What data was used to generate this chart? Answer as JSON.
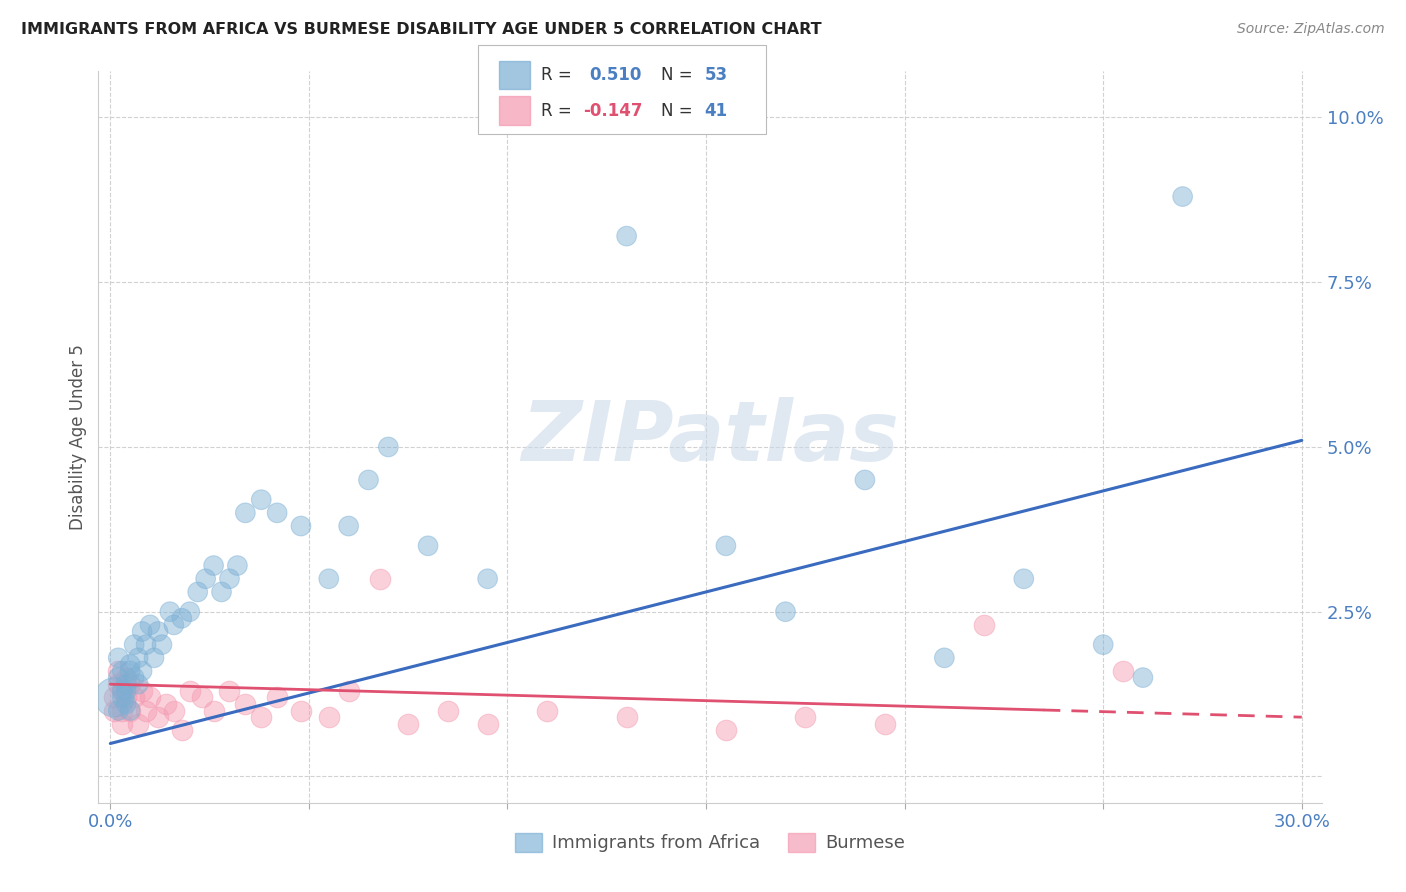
{
  "title": "IMMIGRANTS FROM AFRICA VS BURMESE DISABILITY AGE UNDER 5 CORRELATION CHART",
  "source": "Source: ZipAtlas.com",
  "ylabel": "Disability Age Under 5",
  "xlim": [
    0.0,
    0.3
  ],
  "ylim": [
    0.0,
    0.105
  ],
  "xticks": [
    0.0,
    0.05,
    0.1,
    0.15,
    0.2,
    0.25,
    0.3
  ],
  "xtick_labels": [
    "0.0%",
    "",
    "",
    "",
    "",
    "",
    "30.0%"
  ],
  "yticks": [
    0.0,
    0.025,
    0.05,
    0.075,
    0.1
  ],
  "ytick_labels": [
    "",
    "2.5%",
    "5.0%",
    "7.5%",
    "10.0%"
  ],
  "background_color": "#ffffff",
  "watermark_text": "ZIPatlas",
  "legend_R1": "R =  0.510",
  "legend_N1": "N = 53",
  "legend_R2": "R = -0.147",
  "legend_N2": "N = 41",
  "blue_color": "#7bafd4",
  "pink_color": "#f499b0",
  "line_blue": "#3a6bbf",
  "line_pink": "#e05070",
  "blue_line_start_y": 0.005,
  "blue_line_end_y": 0.051,
  "pink_line_start_y": 0.014,
  "pink_line_end_y": 0.009,
  "africa_x": [
    0.001,
    0.002,
    0.002,
    0.002,
    0.003,
    0.003,
    0.003,
    0.004,
    0.004,
    0.004,
    0.005,
    0.005,
    0.005,
    0.006,
    0.006,
    0.007,
    0.007,
    0.008,
    0.008,
    0.009,
    0.01,
    0.011,
    0.012,
    0.013,
    0.015,
    0.016,
    0.018,
    0.02,
    0.022,
    0.024,
    0.026,
    0.028,
    0.03,
    0.032,
    0.034,
    0.038,
    0.042,
    0.048,
    0.055,
    0.06,
    0.065,
    0.07,
    0.08,
    0.095,
    0.13,
    0.155,
    0.17,
    0.19,
    0.21,
    0.23,
    0.25,
    0.26,
    0.27
  ],
  "africa_y": [
    0.012,
    0.015,
    0.01,
    0.018,
    0.013,
    0.012,
    0.016,
    0.014,
    0.011,
    0.013,
    0.017,
    0.01,
    0.016,
    0.02,
    0.015,
    0.018,
    0.014,
    0.022,
    0.016,
    0.02,
    0.023,
    0.018,
    0.022,
    0.02,
    0.025,
    0.023,
    0.024,
    0.025,
    0.028,
    0.03,
    0.032,
    0.028,
    0.03,
    0.032,
    0.04,
    0.042,
    0.04,
    0.038,
    0.03,
    0.038,
    0.045,
    0.05,
    0.035,
    0.03,
    0.082,
    0.035,
    0.025,
    0.045,
    0.018,
    0.03,
    0.02,
    0.015,
    0.088
  ],
  "africa_sizes": [
    800,
    200,
    200,
    200,
    200,
    200,
    200,
    200,
    200,
    200,
    200,
    200,
    200,
    200,
    200,
    200,
    200,
    200,
    200,
    200,
    200,
    200,
    200,
    200,
    200,
    200,
    200,
    200,
    200,
    200,
    200,
    200,
    200,
    200,
    200,
    200,
    200,
    200,
    200,
    200,
    200,
    200,
    200,
    200,
    200,
    200,
    200,
    200,
    200,
    200,
    200,
    200,
    200
  ],
  "burmese_x": [
    0.001,
    0.001,
    0.002,
    0.002,
    0.003,
    0.003,
    0.003,
    0.004,
    0.004,
    0.005,
    0.005,
    0.006,
    0.007,
    0.008,
    0.009,
    0.01,
    0.012,
    0.014,
    0.016,
    0.018,
    0.02,
    0.023,
    0.026,
    0.03,
    0.034,
    0.038,
    0.042,
    0.048,
    0.055,
    0.06,
    0.068,
    0.075,
    0.085,
    0.095,
    0.11,
    0.13,
    0.155,
    0.175,
    0.195,
    0.22,
    0.255
  ],
  "burmese_y": [
    0.012,
    0.01,
    0.014,
    0.016,
    0.01,
    0.013,
    0.008,
    0.012,
    0.015,
    0.01,
    0.014,
    0.012,
    0.008,
    0.013,
    0.01,
    0.012,
    0.009,
    0.011,
    0.01,
    0.007,
    0.013,
    0.012,
    0.01,
    0.013,
    0.011,
    0.009,
    0.012,
    0.01,
    0.009,
    0.013,
    0.03,
    0.008,
    0.01,
    0.008,
    0.01,
    0.009,
    0.007,
    0.009,
    0.008,
    0.023,
    0.016
  ]
}
